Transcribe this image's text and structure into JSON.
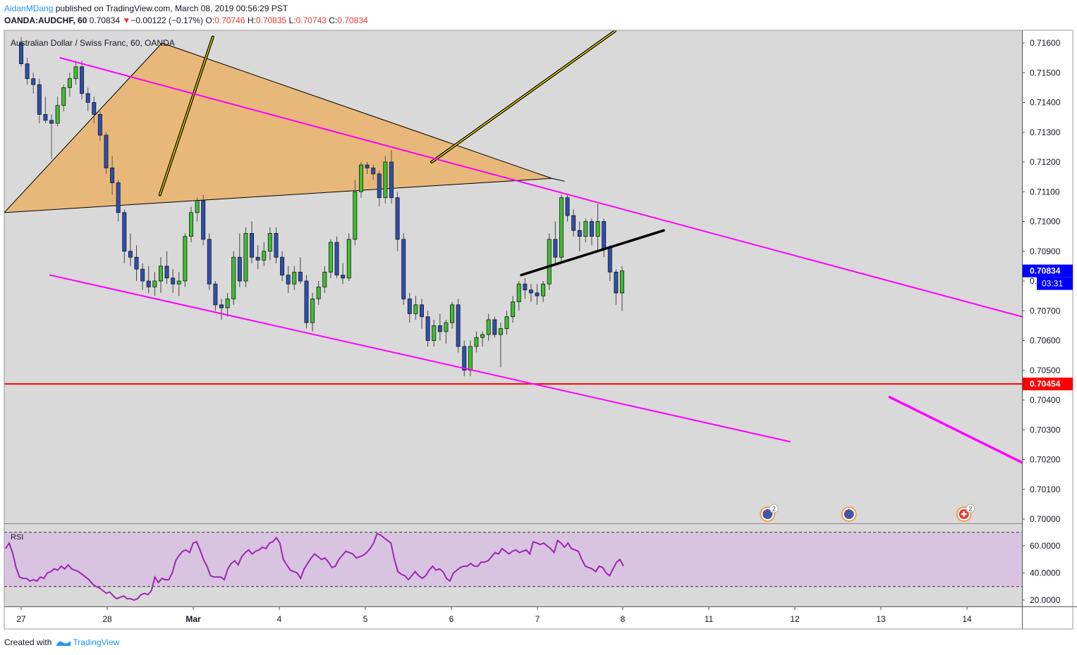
{
  "header": {
    "author": "AidanMDang",
    "published": "published on TradingView.com, March 08, 2019 00:56:29 PST",
    "symbol": "OANDA:AUDCHF, 60",
    "last": "0.70834",
    "change_arrow": "▼",
    "change": "−0.00122 (−0.17%)",
    "o_label": "O:",
    "o_value": "0.70746",
    "h_label": "H:",
    "h_value": "0.70835",
    "l_label": "L:",
    "l_value": "0.70743",
    "c_label": "C:",
    "c_value": "0.70834"
  },
  "footer": {
    "created": "Created with",
    "brand": "TradingView"
  },
  "chart_data": {
    "type": "candlestick",
    "title": "Australian Dollar / Swiss Franc, 60, OANDA",
    "price_axis": {
      "ticks": [
        "0.71600",
        "0.71500",
        "0.71400",
        "0.71300",
        "0.71200",
        "0.71100",
        "0.71000",
        "0.70900",
        "0.70800",
        "0.70700",
        "0.70600",
        "0.70500",
        "0.70400",
        "0.70300",
        "0.70200",
        "0.70100",
        "0.70000"
      ],
      "ylim": [
        0.7,
        0.716
      ]
    },
    "time_axis": {
      "labels": [
        "27",
        "28",
        "Mar",
        "4",
        "5",
        "6",
        "7",
        "8",
        "11",
        "12",
        "13",
        "14"
      ]
    },
    "current_price": {
      "label": "0.70834",
      "countdown": "03:31",
      "value": 0.70834,
      "color": "#0000ff"
    },
    "horizontal_line": {
      "label": "0.70454",
      "value": 0.70454,
      "color": "#ff0000"
    },
    "candles": [
      [
        0.716,
        0.7162,
        0.7152,
        0.7153
      ],
      [
        0.7153,
        0.7155,
        0.7146,
        0.7148
      ],
      [
        0.7148,
        0.715,
        0.7143,
        0.7146
      ],
      [
        0.7146,
        0.7148,
        0.7133,
        0.7136
      ],
      [
        0.7136,
        0.7142,
        0.7133,
        0.7134
      ],
      [
        0.7134,
        0.7136,
        0.7121,
        0.7133
      ],
      [
        0.7133,
        0.7142,
        0.7132,
        0.7139
      ],
      [
        0.7139,
        0.7146,
        0.7137,
        0.7145
      ],
      [
        0.7145,
        0.715,
        0.7142,
        0.7148
      ],
      [
        0.7148,
        0.7154,
        0.7146,
        0.7152
      ],
      [
        0.7152,
        0.7154,
        0.7141,
        0.7143
      ],
      [
        0.7143,
        0.7145,
        0.7137,
        0.714
      ],
      [
        0.714,
        0.7142,
        0.7133,
        0.7136
      ],
      [
        0.7136,
        0.7137,
        0.7127,
        0.7129
      ],
      [
        0.7129,
        0.713,
        0.7116,
        0.7118
      ],
      [
        0.7118,
        0.7122,
        0.7109,
        0.7113
      ],
      [
        0.7113,
        0.7114,
        0.71,
        0.7103
      ],
      [
        0.7103,
        0.7104,
        0.7086,
        0.709
      ],
      [
        0.709,
        0.7096,
        0.7085,
        0.7088
      ],
      [
        0.7088,
        0.7092,
        0.708,
        0.7084
      ],
      [
        0.7084,
        0.7086,
        0.7077,
        0.708
      ],
      [
        0.708,
        0.7085,
        0.7076,
        0.7078
      ],
      [
        0.7078,
        0.7083,
        0.7075,
        0.708
      ],
      [
        0.708,
        0.7088,
        0.7076,
        0.7085
      ],
      [
        0.7085,
        0.709,
        0.7079,
        0.7081
      ],
      [
        0.7081,
        0.7084,
        0.7076,
        0.7079
      ],
      [
        0.7079,
        0.7083,
        0.7075,
        0.708
      ],
      [
        0.708,
        0.7096,
        0.7078,
        0.7095
      ],
      [
        0.7095,
        0.7105,
        0.7093,
        0.7103
      ],
      [
        0.7103,
        0.7108,
        0.71,
        0.7107
      ],
      [
        0.7107,
        0.7109,
        0.7092,
        0.7094
      ],
      [
        0.7094,
        0.7096,
        0.7077,
        0.7079
      ],
      [
        0.7079,
        0.708,
        0.707,
        0.7072
      ],
      [
        0.7072,
        0.7074,
        0.7067,
        0.7071
      ],
      [
        0.7071,
        0.7076,
        0.7068,
        0.7074
      ],
      [
        0.7074,
        0.709,
        0.7072,
        0.7088
      ],
      [
        0.7088,
        0.7096,
        0.7078,
        0.708
      ],
      [
        0.708,
        0.7098,
        0.7078,
        0.7096
      ],
      [
        0.7096,
        0.71,
        0.7086,
        0.7088
      ],
      [
        0.7088,
        0.7092,
        0.7084,
        0.7087
      ],
      [
        0.7087,
        0.7093,
        0.7085,
        0.709
      ],
      [
        0.709,
        0.7098,
        0.7087,
        0.7096
      ],
      [
        0.7096,
        0.7098,
        0.7086,
        0.7088
      ],
      [
        0.7088,
        0.709,
        0.708,
        0.7082
      ],
      [
        0.7082,
        0.7085,
        0.7076,
        0.7079
      ],
      [
        0.7079,
        0.7085,
        0.7077,
        0.7083
      ],
      [
        0.7083,
        0.7088,
        0.7079,
        0.708
      ],
      [
        0.708,
        0.7082,
        0.7064,
        0.7066
      ],
      [
        0.7066,
        0.7076,
        0.7063,
        0.7074
      ],
      [
        0.7074,
        0.708,
        0.7072,
        0.7078
      ],
      [
        0.7078,
        0.7085,
        0.7076,
        0.7083
      ],
      [
        0.7083,
        0.7094,
        0.7081,
        0.7093
      ],
      [
        0.7093,
        0.7095,
        0.7081,
        0.7082
      ],
      [
        0.7082,
        0.7086,
        0.7079,
        0.7081
      ],
      [
        0.7081,
        0.7096,
        0.708,
        0.7094
      ],
      [
        0.7094,
        0.7114,
        0.7092,
        0.711
      ],
      [
        0.711,
        0.712,
        0.7108,
        0.7119
      ],
      [
        0.7119,
        0.712,
        0.7116,
        0.7118
      ],
      [
        0.7118,
        0.7119,
        0.7114,
        0.7116
      ],
      [
        0.7116,
        0.7117,
        0.7105,
        0.7108
      ],
      [
        0.7108,
        0.7122,
        0.7106,
        0.712
      ],
      [
        0.712,
        0.7124,
        0.7106,
        0.7108
      ],
      [
        0.7108,
        0.711,
        0.709,
        0.7094
      ],
      [
        0.7094,
        0.7096,
        0.7072,
        0.7074
      ],
      [
        0.7074,
        0.7076,
        0.7066,
        0.7069
      ],
      [
        0.7069,
        0.7075,
        0.7067,
        0.7072
      ],
      [
        0.7072,
        0.7074,
        0.7064,
        0.7068
      ],
      [
        0.7068,
        0.707,
        0.7058,
        0.706
      ],
      [
        0.706,
        0.7067,
        0.7058,
        0.7065
      ],
      [
        0.7065,
        0.7069,
        0.706,
        0.7063
      ],
      [
        0.7063,
        0.7067,
        0.7059,
        0.7066
      ],
      [
        0.7066,
        0.7073,
        0.7064,
        0.7072
      ],
      [
        0.7072,
        0.7074,
        0.7056,
        0.7058
      ],
      [
        0.7058,
        0.706,
        0.7048,
        0.705
      ],
      [
        0.705,
        0.706,
        0.7048,
        0.7058
      ],
      [
        0.7058,
        0.7063,
        0.7056,
        0.7061
      ],
      [
        0.7061,
        0.7063,
        0.7058,
        0.7062
      ],
      [
        0.7062,
        0.7069,
        0.706,
        0.7067
      ],
      [
        0.7067,
        0.7068,
        0.7061,
        0.7062
      ],
      [
        0.7062,
        0.7066,
        0.7051,
        0.7064
      ],
      [
        0.7064,
        0.707,
        0.7062,
        0.7068
      ],
      [
        0.7068,
        0.7075,
        0.7066,
        0.7073
      ],
      [
        0.7073,
        0.708,
        0.707,
        0.7079
      ],
      [
        0.7079,
        0.7081,
        0.7074,
        0.7077
      ],
      [
        0.7077,
        0.7079,
        0.7073,
        0.7076
      ],
      [
        0.7076,
        0.7079,
        0.7072,
        0.7075
      ],
      [
        0.7075,
        0.708,
        0.7073,
        0.7079
      ],
      [
        0.7079,
        0.7096,
        0.7077,
        0.7094
      ],
      [
        0.7094,
        0.71,
        0.7086,
        0.7088
      ],
      [
        0.7088,
        0.7109,
        0.7086,
        0.7108
      ],
      [
        0.7108,
        0.7109,
        0.71,
        0.7102
      ],
      [
        0.7102,
        0.7104,
        0.7095,
        0.7097
      ],
      [
        0.7097,
        0.71,
        0.709,
        0.7095
      ],
      [
        0.7095,
        0.7101,
        0.7093,
        0.71
      ],
      [
        0.71,
        0.7101,
        0.7092,
        0.7095
      ],
      [
        0.7095,
        0.7106,
        0.709,
        0.71
      ],
      [
        0.71,
        0.7101,
        0.7088,
        0.7091
      ],
      [
        0.7091,
        0.7092,
        0.708,
        0.7083
      ],
      [
        0.7083,
        0.7084,
        0.7072,
        0.7076
      ],
      [
        0.7076,
        0.7085,
        0.707,
        0.70834
      ]
    ],
    "drawings": {
      "triangle": {
        "fill": "#e8b87a",
        "points": [
          [
            0.0,
            0.7103
          ],
          [
            0.155,
            0.716
          ],
          [
            0.538,
            0.71145
          ]
        ]
      },
      "magenta_upper": {
        "color": "#ff00ff",
        "from": [
          0.055,
          0.7155
        ],
        "to": [
          1.0,
          0.7068
        ]
      },
      "magenta_lower": {
        "color": "#ff00ff",
        "from": [
          0.045,
          0.7082
        ],
        "to": [
          0.772,
          0.7026
        ]
      },
      "magenta_short": {
        "color": "#ff00ff",
        "from": [
          0.87,
          0.7041
        ],
        "to": [
          1.0,
          0.7019
        ]
      },
      "black_short": {
        "color": "#000000",
        "from": [
          0.508,
          0.7082
        ],
        "to": [
          0.648,
          0.7097
        ]
      },
      "yellow_left": {
        "color": "#e6d800",
        "from": [
          0.153,
          0.7109
        ],
        "to": [
          0.205,
          0.7162
        ]
      },
      "yellow_right": {
        "color": "#e6d800",
        "from": [
          0.42,
          0.712
        ],
        "to": [
          0.6,
          0.7164
        ]
      }
    },
    "events": [
      {
        "type": "AU",
        "x": 0.75,
        "badge": "2"
      },
      {
        "type": "AU",
        "x": 0.83,
        "badge": ""
      },
      {
        "type": "CH",
        "x": 0.943,
        "badge": "2"
      }
    ],
    "rsi": {
      "label": "RSI",
      "ticks": [
        "60.0000",
        "40.0000",
        "20.0000"
      ],
      "ylim": [
        15,
        70
      ],
      "bands": [
        30,
        70
      ],
      "color": "#9c27b0",
      "band_fill": "#d8c3e0",
      "values": [
        58,
        62,
        55,
        44,
        37,
        36,
        36,
        34,
        35,
        34,
        37,
        36,
        40,
        41,
        43,
        42,
        45,
        43,
        46,
        43,
        42,
        41,
        39,
        37,
        35,
        32,
        30,
        29,
        27,
        25,
        26,
        23,
        21,
        22,
        23,
        21,
        21,
        20,
        21,
        24,
        25,
        24,
        27,
        37,
        33,
        36,
        35,
        35,
        40,
        49,
        53,
        56,
        57,
        55,
        62,
        63,
        57,
        50,
        45,
        38,
        37,
        37,
        37,
        35,
        43,
        47,
        49,
        46,
        52,
        55,
        57,
        54,
        56,
        57,
        59,
        58,
        62,
        63,
        66,
        62,
        50,
        46,
        42,
        41,
        40,
        36,
        43,
        47,
        51,
        54,
        52,
        50,
        51,
        48,
        44,
        45,
        50,
        53,
        56,
        55,
        54,
        51,
        52,
        53,
        55,
        58,
        62,
        69,
        68,
        66,
        64,
        62,
        50,
        41,
        39,
        38,
        35,
        38,
        41,
        38,
        36,
        38,
        42,
        45,
        42,
        43,
        41,
        36,
        34,
        40,
        42,
        44,
        45,
        45,
        47,
        45,
        45,
        48,
        48,
        49,
        52,
        55,
        54,
        58,
        56,
        54,
        56,
        57,
        55,
        56,
        57,
        54,
        63,
        62,
        61,
        62,
        60,
        58,
        55,
        64,
        62,
        59,
        62,
        58,
        57,
        56,
        50,
        45,
        44,
        43,
        41,
        45,
        44,
        40,
        38,
        43,
        48,
        50,
        45
      ]
    }
  }
}
